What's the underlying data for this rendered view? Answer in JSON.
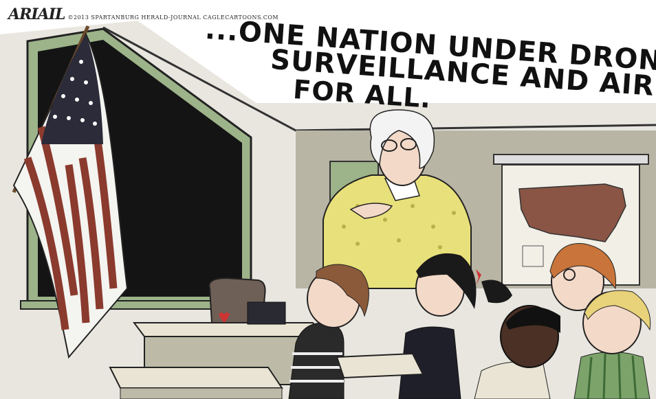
{
  "caption": {
    "line1": "...ONE NATION UNDER DRONES WITH",
    "line2": "SURVEILLANCE AND AIR STRIKES",
    "line3": "FOR ALL."
  },
  "signature": {
    "artist": "ARIAIL",
    "credit": "©2013 SPARTANBURG HERALD-JOURNAL CAGLECARTOONS.COM"
  },
  "colors": {
    "chalkboard": "#141414",
    "wall": "#e8e6df",
    "board_frame": "#9db38a",
    "flag_red": "#8b3a2e",
    "flag_blue": "#2b2b3a",
    "teacher_dress": "#e8e07a",
    "desk_top": "#e9e4d4",
    "map_fill": "#8a5545",
    "teacher_hair": "#f3f3f3",
    "boy_hair": "#8a5a3a",
    "skin": "#f3d9c8"
  }
}
